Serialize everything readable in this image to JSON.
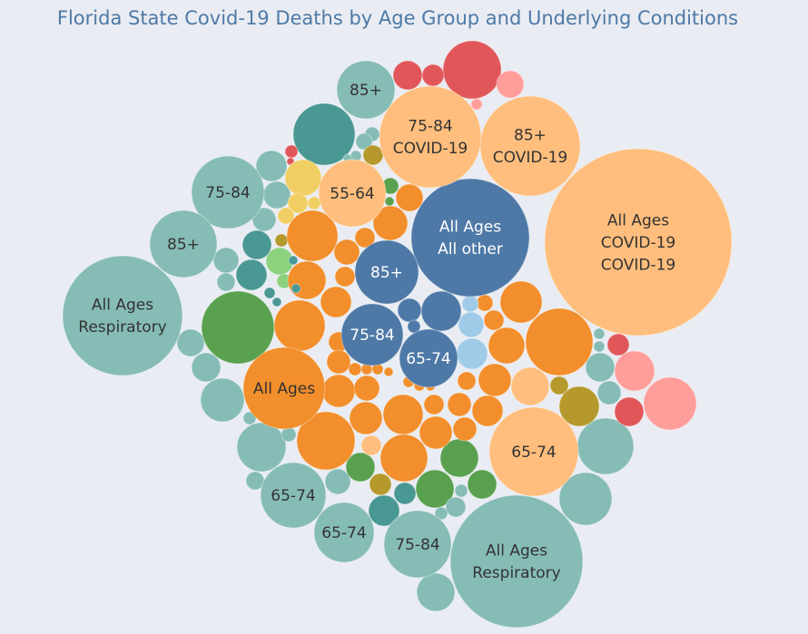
{
  "title": "Florida State Covid-19 Deaths by Age Group and Underlying Conditions",
  "colors": {
    "teal_light": "#86bcb6",
    "teal_dark": "#499894",
    "orange_dark": "#f28e2b",
    "orange_light": "#ffbe7d",
    "blue_dark": "#4e79a7",
    "blue_light": "#a0cbe8",
    "red": "#e15759",
    "pink": "#ff9d9a",
    "green_dark": "#59a14f",
    "green_light": "#8cd17d",
    "olive": "#b6992d",
    "yellow": "#f1ce63"
  },
  "chart_data": {
    "type": "bubble",
    "title": "Florida State Covid-19 Deaths by Age Group and Underlying Conditions",
    "labeled_bubbles": [
      {
        "label": [
          "All Ages",
          "COVID-19",
          "COVID-19"
        ],
        "color": "orange_light",
        "text_color": "#333333"
      },
      {
        "label": [
          "All Ages",
          "Respiratory"
        ],
        "color": "teal_light",
        "text_color": "#333333"
      },
      {
        "label": [
          "All Ages",
          "Respiratory"
        ],
        "color": "teal_light",
        "text_color": "#333333"
      },
      {
        "label": [
          "All Ages",
          "All other"
        ],
        "color": "blue_dark",
        "text_color": "#ffffff"
      },
      {
        "label": [
          "75-84",
          "COVID-19"
        ],
        "color": "orange_light",
        "text_color": "#333333"
      },
      {
        "label": [
          "85+",
          "COVID-19"
        ],
        "color": "orange_light",
        "text_color": "#333333"
      },
      {
        "label": [
          "All Ages"
        ],
        "color": "orange_dark",
        "text_color": "#333333"
      },
      {
        "label": [
          "65-74"
        ],
        "color": "orange_light",
        "text_color": "#333333"
      },
      {
        "label": [
          "85+"
        ],
        "color": "teal_light",
        "text_color": "#333333"
      },
      {
        "label": [
          "75-84"
        ],
        "color": "teal_light",
        "text_color": "#333333"
      },
      {
        "label": [
          "85+"
        ],
        "color": "teal_light",
        "text_color": "#333333"
      },
      {
        "label": [
          "55-64"
        ],
        "color": "orange_light",
        "text_color": "#333333"
      },
      {
        "label": [
          "85+"
        ],
        "color": "blue_dark",
        "text_color": "#ffffff"
      },
      {
        "label": [
          "75-84"
        ],
        "color": "blue_dark",
        "text_color": "#ffffff"
      },
      {
        "label": [
          "65-74"
        ],
        "color": "blue_dark",
        "text_color": "#ffffff"
      },
      {
        "label": [
          "65-74"
        ],
        "color": "teal_light",
        "text_color": "#333333"
      },
      {
        "label": [
          "65-74"
        ],
        "color": "teal_light",
        "text_color": "#333333"
      },
      {
        "label": [
          "75-84"
        ],
        "color": "teal_light",
        "text_color": "#333333"
      }
    ]
  }
}
